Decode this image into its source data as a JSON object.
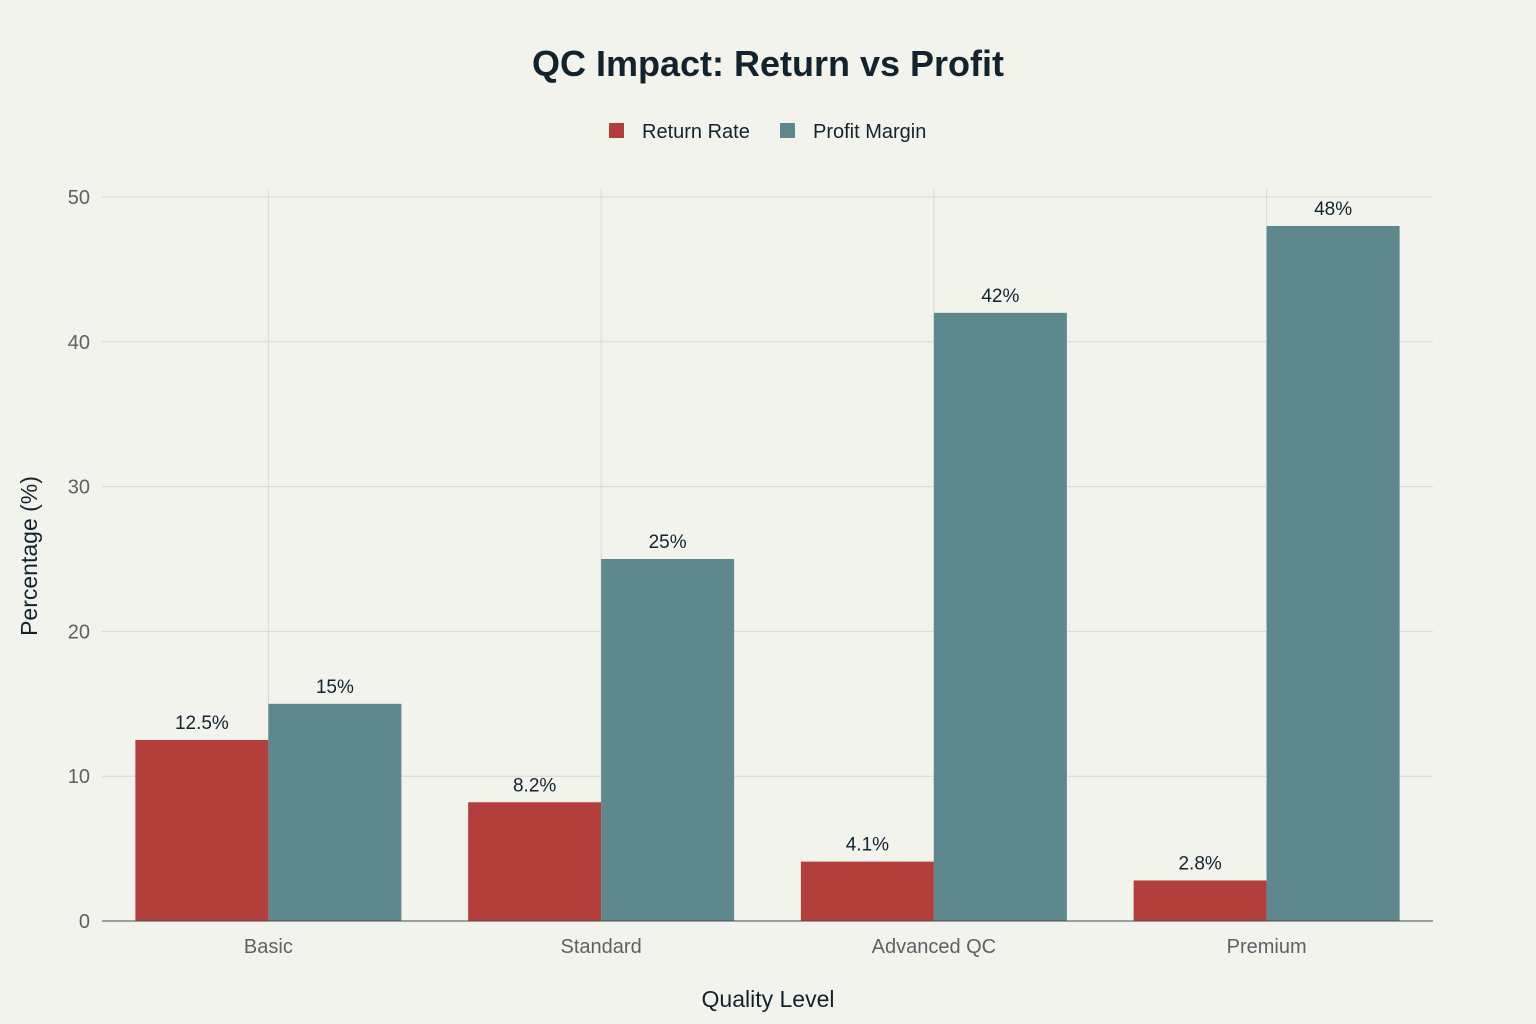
{
  "chart_data": {
    "type": "bar",
    "title": "QC Impact: Return vs Profit",
    "xlabel": "Quality Level",
    "ylabel": "Percentage (%)",
    "categories": [
      "Basic",
      "Standard",
      "Advanced QC",
      "Premium"
    ],
    "series": [
      {
        "name": "Return Rate",
        "color": "#b33f3c",
        "values": [
          12.5,
          8.2,
          4.1,
          2.8
        ],
        "labels": [
          "12.5%",
          "8.2%",
          "4.1%",
          "2.8%"
        ]
      },
      {
        "name": "Profit Margin",
        "color": "#5e878e",
        "values": [
          15,
          25,
          42,
          48
        ],
        "labels": [
          "15%",
          "25%",
          "42%",
          "48%"
        ]
      }
    ],
    "ylim": [
      0,
      50
    ],
    "yticks": [
      0,
      10,
      20,
      30,
      40,
      50
    ],
    "grid": true,
    "legend": "top-center"
  }
}
